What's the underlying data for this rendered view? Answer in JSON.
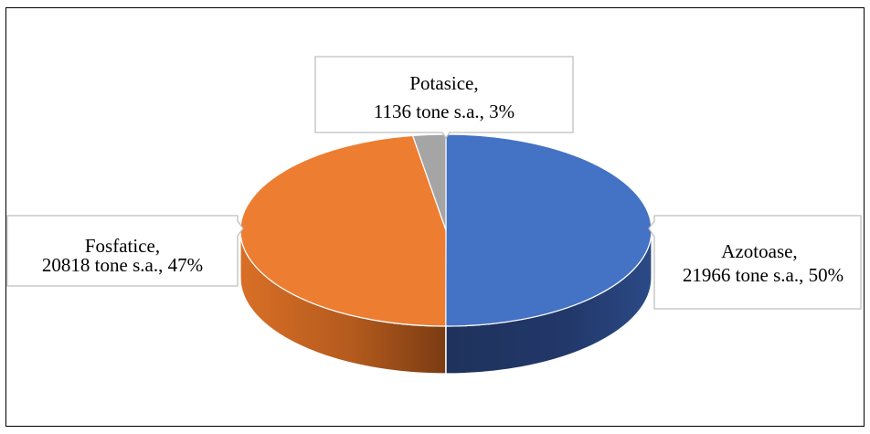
{
  "chart_data": {
    "type": "pie",
    "title": "",
    "slices": [
      {
        "name": "Azotoase",
        "value": 21966,
        "unit": "tone s.a.",
        "percent_label": "50%",
        "color": "#4472C4"
      },
      {
        "name": "Fosfatice",
        "value": 20818,
        "unit": "tone s.a.",
        "percent_label": "47%",
        "color": "#ED7D31"
      },
      {
        "name": "Potasice",
        "value": 1136,
        "unit": "tone s.a.",
        "percent_label": "3%",
        "color": "#A5A5A5"
      }
    ],
    "labels": [
      {
        "line1": "Azotoase,",
        "line2": "21966 tone s.a., 50%"
      },
      {
        "line1": "Fosfatice,",
        "line2": "20818 tone s.a., 47%"
      },
      {
        "line1": "Potasice,",
        "line2": "1136 tone s.a., 3%"
      }
    ],
    "legend": "none",
    "style": "3d"
  }
}
